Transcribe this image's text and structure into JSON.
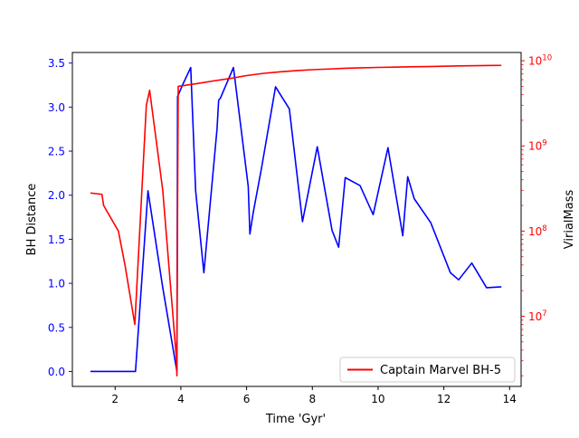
{
  "chart_data": {
    "type": "line",
    "xlabel": "Time 'Gyr'",
    "ylabel_left": "BH Distance",
    "ylabel_right": "VirialMass",
    "xlim": [
      0.7,
      14.35
    ],
    "ylim_left": [
      -0.17,
      3.62
    ],
    "ylim_right": [
      1500000.0,
      12500000000.0
    ],
    "right_axis_scale": "log",
    "x_ticks": [
      2,
      4,
      6,
      8,
      10,
      12,
      14
    ],
    "x_tick_labels": [
      "2",
      "4",
      "6",
      "8",
      "10",
      "12",
      "14"
    ],
    "left_ticks": [
      0,
      0.5,
      1,
      1.5,
      2,
      2.5,
      3,
      3.5
    ],
    "left_tick_labels": [
      "0.0",
      "0.5",
      "1.0",
      "1.5",
      "2.0",
      "2.5",
      "3.0",
      "3.5"
    ],
    "right_ticks": [
      10000000.0,
      100000000.0,
      1000000000.0,
      10000000000.0
    ],
    "right_tick_labels": [
      {
        "base": "10",
        "exp": "7"
      },
      {
        "base": "10",
        "exp": "8"
      },
      {
        "base": "10",
        "exp": "9"
      },
      {
        "base": "10",
        "exp": "10"
      }
    ],
    "legend": {
      "position": "lower right",
      "entries": [
        {
          "label": "Captain Marvel BH-5",
          "color": "#ff0000"
        }
      ]
    },
    "series": [
      {
        "axis": "left",
        "color": "#0000ff",
        "x": [
          1.25,
          1.6,
          2.0,
          2.3,
          2.62,
          3.0,
          3.45,
          3.88,
          3.9,
          4.05,
          4.3,
          4.45,
          4.7,
          5.1,
          5.15,
          5.2,
          5.6,
          6.05,
          6.1,
          6.2,
          6.45,
          6.88,
          7.3,
          7.7,
          8.15,
          8.6,
          8.8,
          9.0,
          9.45,
          9.85,
          10.3,
          10.75,
          10.9,
          11.1,
          11.6,
          12.2,
          12.45,
          12.85,
          13.3,
          13.75
        ],
        "y": [
          0.0,
          0.0,
          0.0,
          0.0,
          0.0,
          2.05,
          0.95,
          0.0,
          3.12,
          3.25,
          3.45,
          2.05,
          1.12,
          2.75,
          3.08,
          3.1,
          3.45,
          2.1,
          1.56,
          1.8,
          2.3,
          3.23,
          2.98,
          1.7,
          2.55,
          1.6,
          1.41,
          2.2,
          2.11,
          1.78,
          2.54,
          1.54,
          2.21,
          1.96,
          1.69,
          1.12,
          1.04,
          1.23,
          0.95,
          0.96
        ]
      },
      {
        "axis": "right",
        "color": "#ff0000",
        "x": [
          1.25,
          1.6,
          1.65,
          2.1,
          2.3,
          2.6,
          2.95,
          3.05,
          3.45,
          3.87,
          3.88,
          3.9,
          3.92,
          4.5,
          5.0,
          5.5,
          6.0,
          6.5,
          7.0,
          7.5,
          8.0,
          8.5,
          9.0,
          9.5,
          10.0,
          10.5,
          11.0,
          11.5,
          12.0,
          12.5,
          13.0,
          13.5,
          13.75
        ],
        "y": [
          280000000,
          270000000,
          200000000,
          100000000,
          40000000,
          8000000,
          3000000000,
          4500000000,
          300000000,
          3000000,
          2000000,
          200000000,
          5000000000,
          5400000000,
          5800000000,
          6200000000,
          6700000000,
          7100000000,
          7400000000,
          7650000000,
          7850000000,
          8000000000,
          8150000000,
          8250000000,
          8350000000,
          8420000000,
          8480000000,
          8550000000,
          8620000000,
          8690000000,
          8750000000,
          8800000000,
          8820000000
        ]
      }
    ]
  }
}
